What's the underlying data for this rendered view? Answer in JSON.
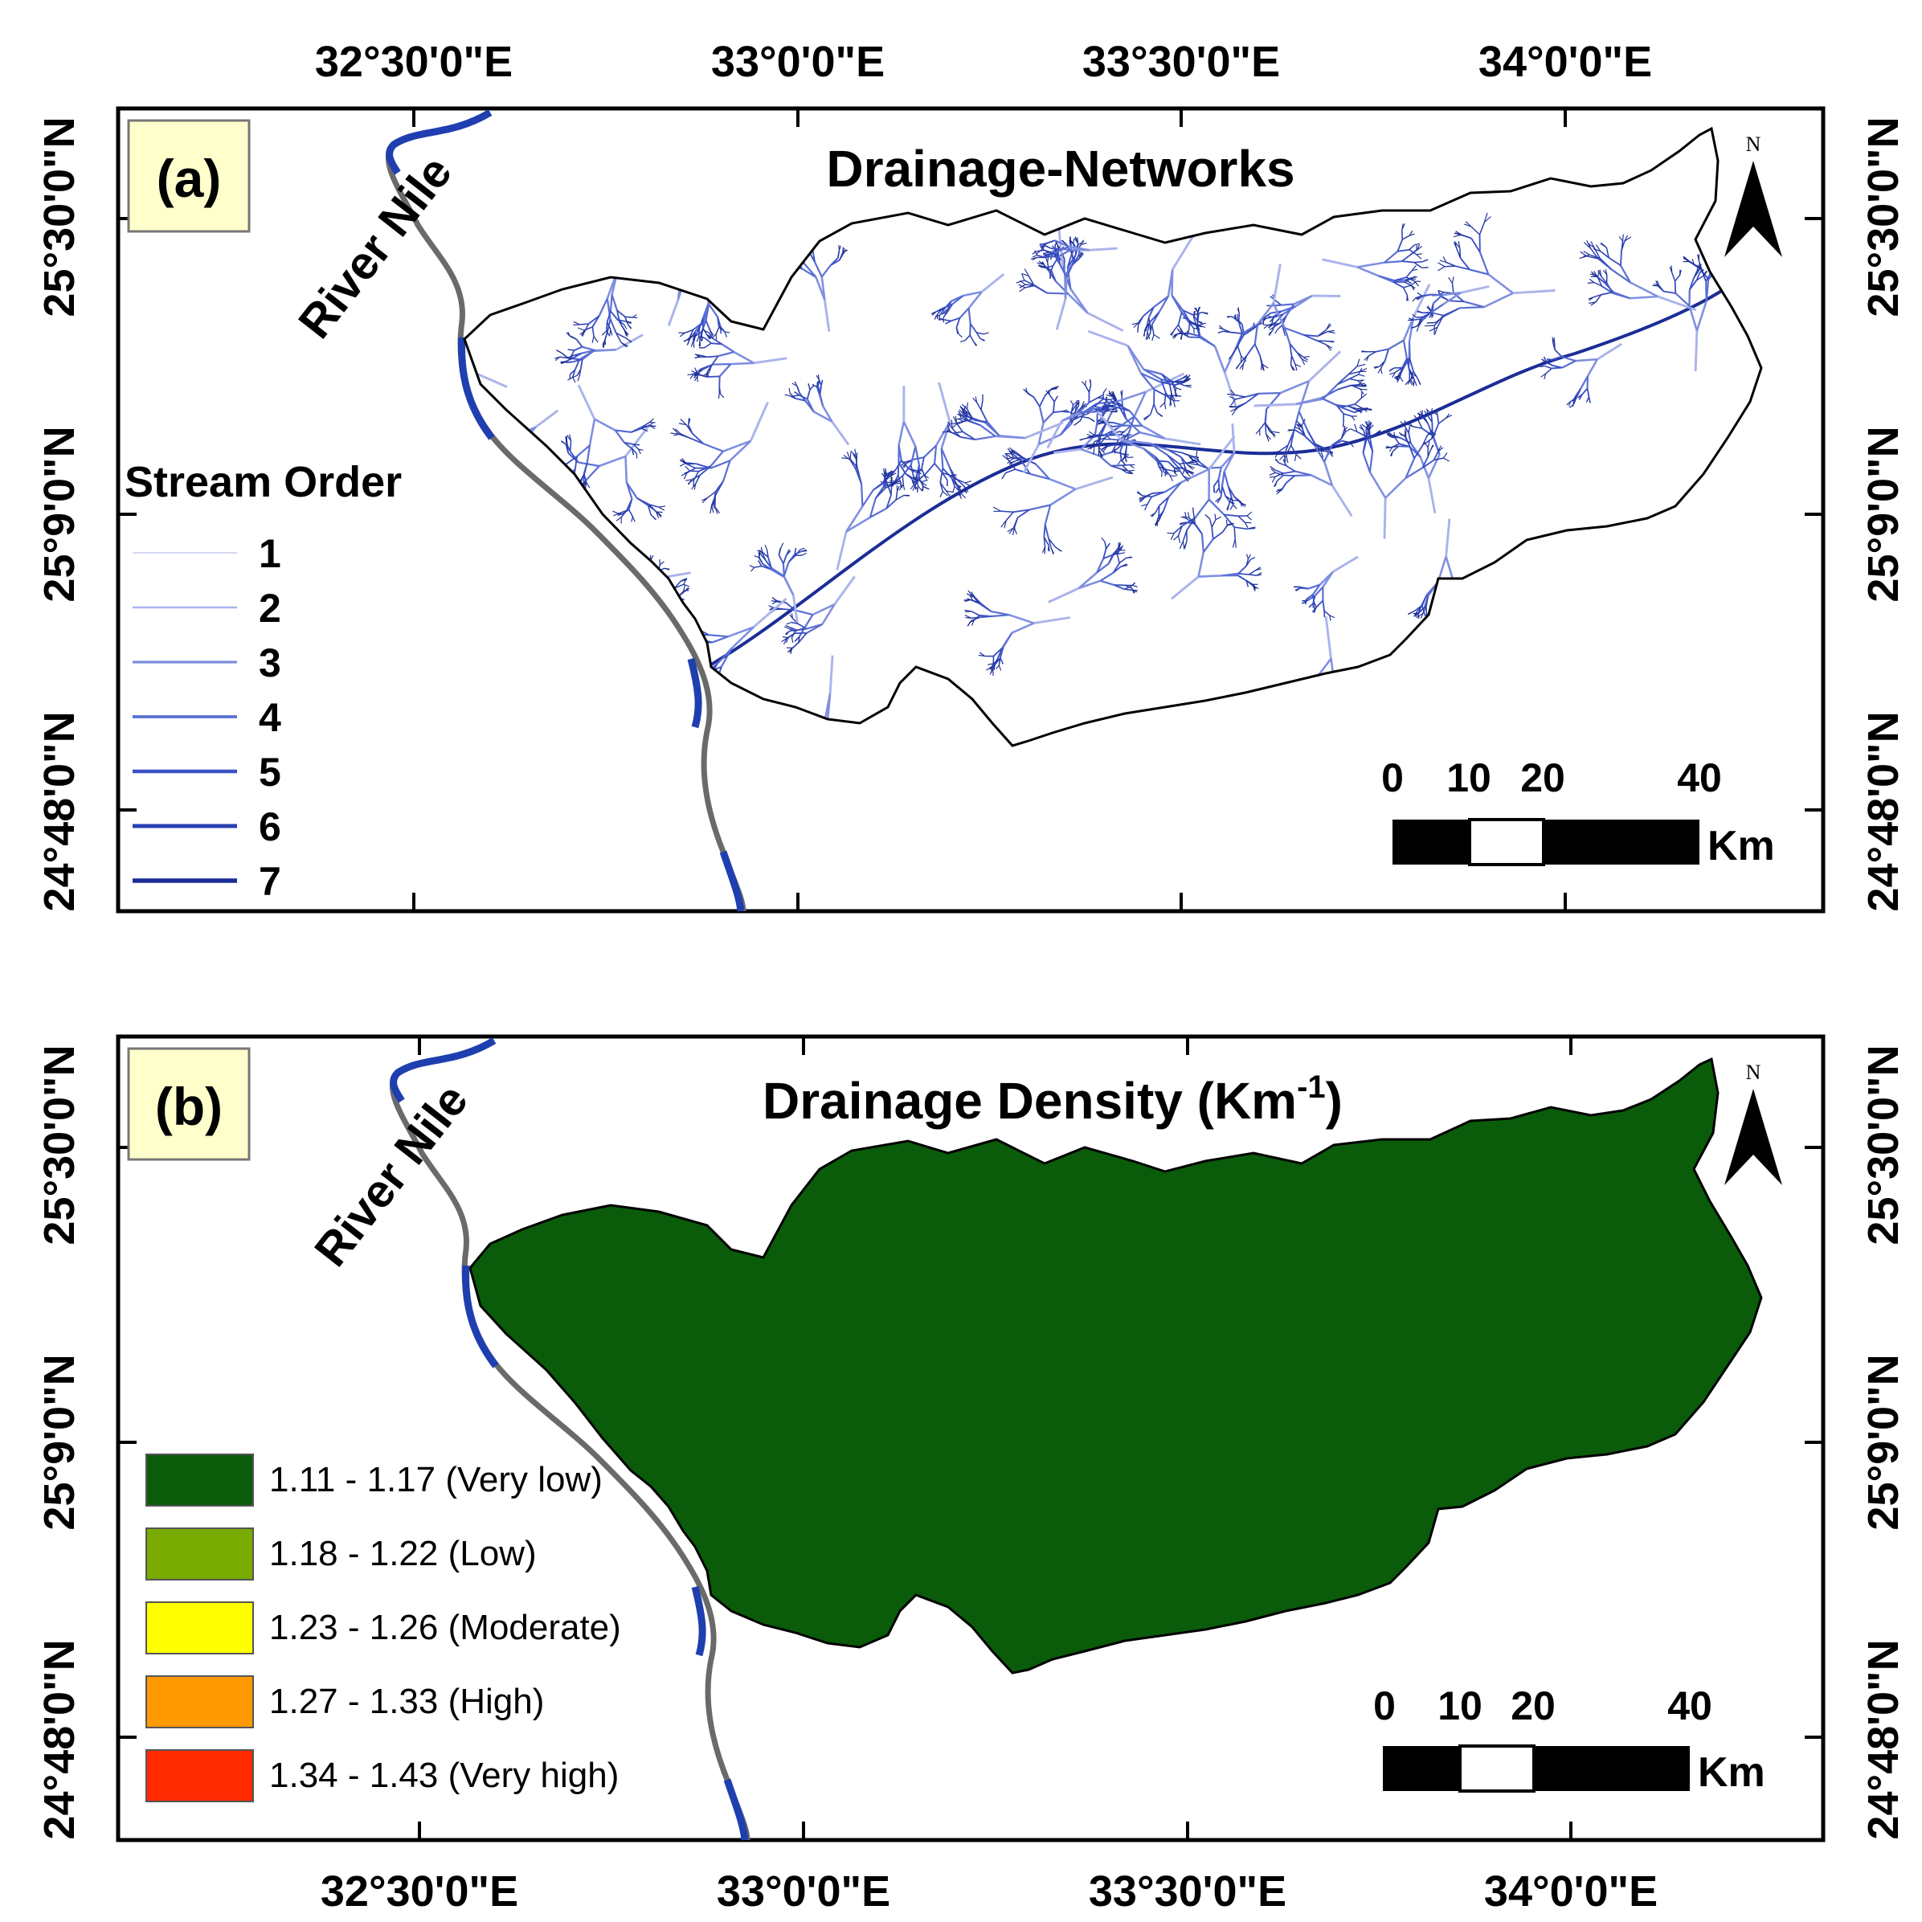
{
  "panels": [
    {
      "id": "a",
      "panel_label": "(a)",
      "title": "Drainage-Networks",
      "river_label": "River Nile",
      "top_ticks": [
        "32°30'0\"E",
        "33°0'0\"E",
        "33°30'0\"E",
        "34°0'0\"E"
      ],
      "left_ticks": [
        "25°30'0\"N",
        "25°9'0\"N",
        "24°48'0\"N"
      ],
      "right_ticks": [
        "25°30'0\"N",
        "25°9'0\"N",
        "24°48'0\"N"
      ],
      "legend_title": "Stream Order",
      "stream_orders": [
        "1",
        "2",
        "3",
        "4",
        "5",
        "6",
        "7"
      ],
      "stream_colors": [
        "#d4d8f4",
        "#aab3ea",
        "#7f8fe0",
        "#5a6fd4",
        "#3c52c4",
        "#2a3fb0",
        "#1b2d96"
      ],
      "scale_labels": [
        "0",
        "10",
        "20",
        "40"
      ],
      "scale_unit": "Km",
      "north_label": "N"
    },
    {
      "id": "b",
      "panel_label": "(b)",
      "title_main": "Drainage Density (Km",
      "title_sup": "-1",
      "title_close": ")",
      "river_label": "River Nile",
      "left_ticks": [
        "25°30'0\"N",
        "25°9'0\"N",
        "24°48'0\"N"
      ],
      "right_ticks": [
        "25°30'0\"N",
        "25°9'0\"N",
        "24°48'0\"N"
      ],
      "bottom_ticks": [
        "32°30'0\"E",
        "33°0'0\"E",
        "33°30'0\"E",
        "34°0'0\"E"
      ],
      "legend": [
        {
          "label": "1.11 - 1.17 (Very low)",
          "color": "#0a5c0a"
        },
        {
          "label": "1.18 - 1.22 (Low)",
          "color": "#7aab00"
        },
        {
          "label": "1.23 - 1.26 (Moderate)",
          "color": "#ffff00"
        },
        {
          "label": "1.27 - 1.33 (High)",
          "color": "#ff9900"
        },
        {
          "label": "1.34 - 1.43 (Very high)",
          "color": "#ff2a00"
        }
      ],
      "scale_labels": [
        "0",
        "10",
        "20",
        "40"
      ],
      "scale_unit": "Km",
      "north_label": "N"
    }
  ]
}
